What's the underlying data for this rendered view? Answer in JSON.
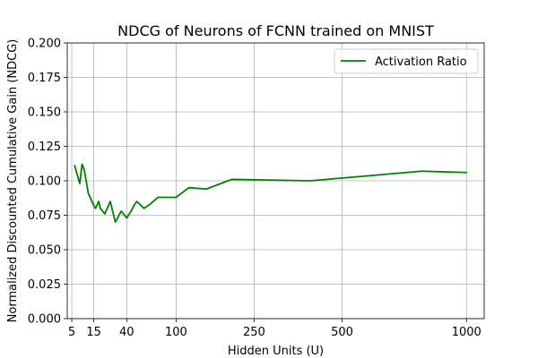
{
  "chart_data": {
    "type": "line",
    "title": "NDCG of Neurons of FCNN trained on MNIST",
    "xlabel": "Hidden Units (U)",
    "ylabel": "Normalized Discounted Cumulative Gain (NDCG)",
    "x_scale": "sqrt",
    "xlim": [
      3.6,
      1085
    ],
    "ylim": [
      0.0,
      0.2
    ],
    "x_ticks": [
      5,
      15,
      40,
      100,
      250,
      500,
      1000
    ],
    "x_tick_labels": [
      "5",
      "15",
      "40",
      "100",
      "250",
      "500",
      "1000"
    ],
    "y_ticks": [
      0.0,
      0.025,
      0.05,
      0.075,
      0.1,
      0.125,
      0.15,
      0.175,
      0.2
    ],
    "y_tick_labels": [
      "0.000",
      "0.025",
      "0.050",
      "0.075",
      "0.100",
      "0.125",
      "0.150",
      "0.175",
      "0.200"
    ],
    "grid": true,
    "legend_position": "top-right",
    "series": [
      {
        "name": "Activation Ratio",
        "color": "#008000",
        "x": [
          6,
          8,
          9,
          10,
          12,
          14,
          15,
          16,
          18,
          19,
          22,
          26,
          30,
          35,
          40,
          45,
          47,
          50,
          58,
          65,
          75,
          100,
          120,
          150,
          200,
          400,
          800,
          1000
        ],
        "y": [
          0.111,
          0.098,
          0.112,
          0.108,
          0.091,
          0.085,
          0.082,
          0.08,
          0.085,
          0.08,
          0.076,
          0.085,
          0.07,
          0.078,
          0.073,
          0.079,
          0.082,
          0.085,
          0.08,
          0.083,
          0.088,
          0.088,
          0.095,
          0.094,
          0.101,
          0.1,
          0.107,
          0.106
        ]
      }
    ]
  }
}
